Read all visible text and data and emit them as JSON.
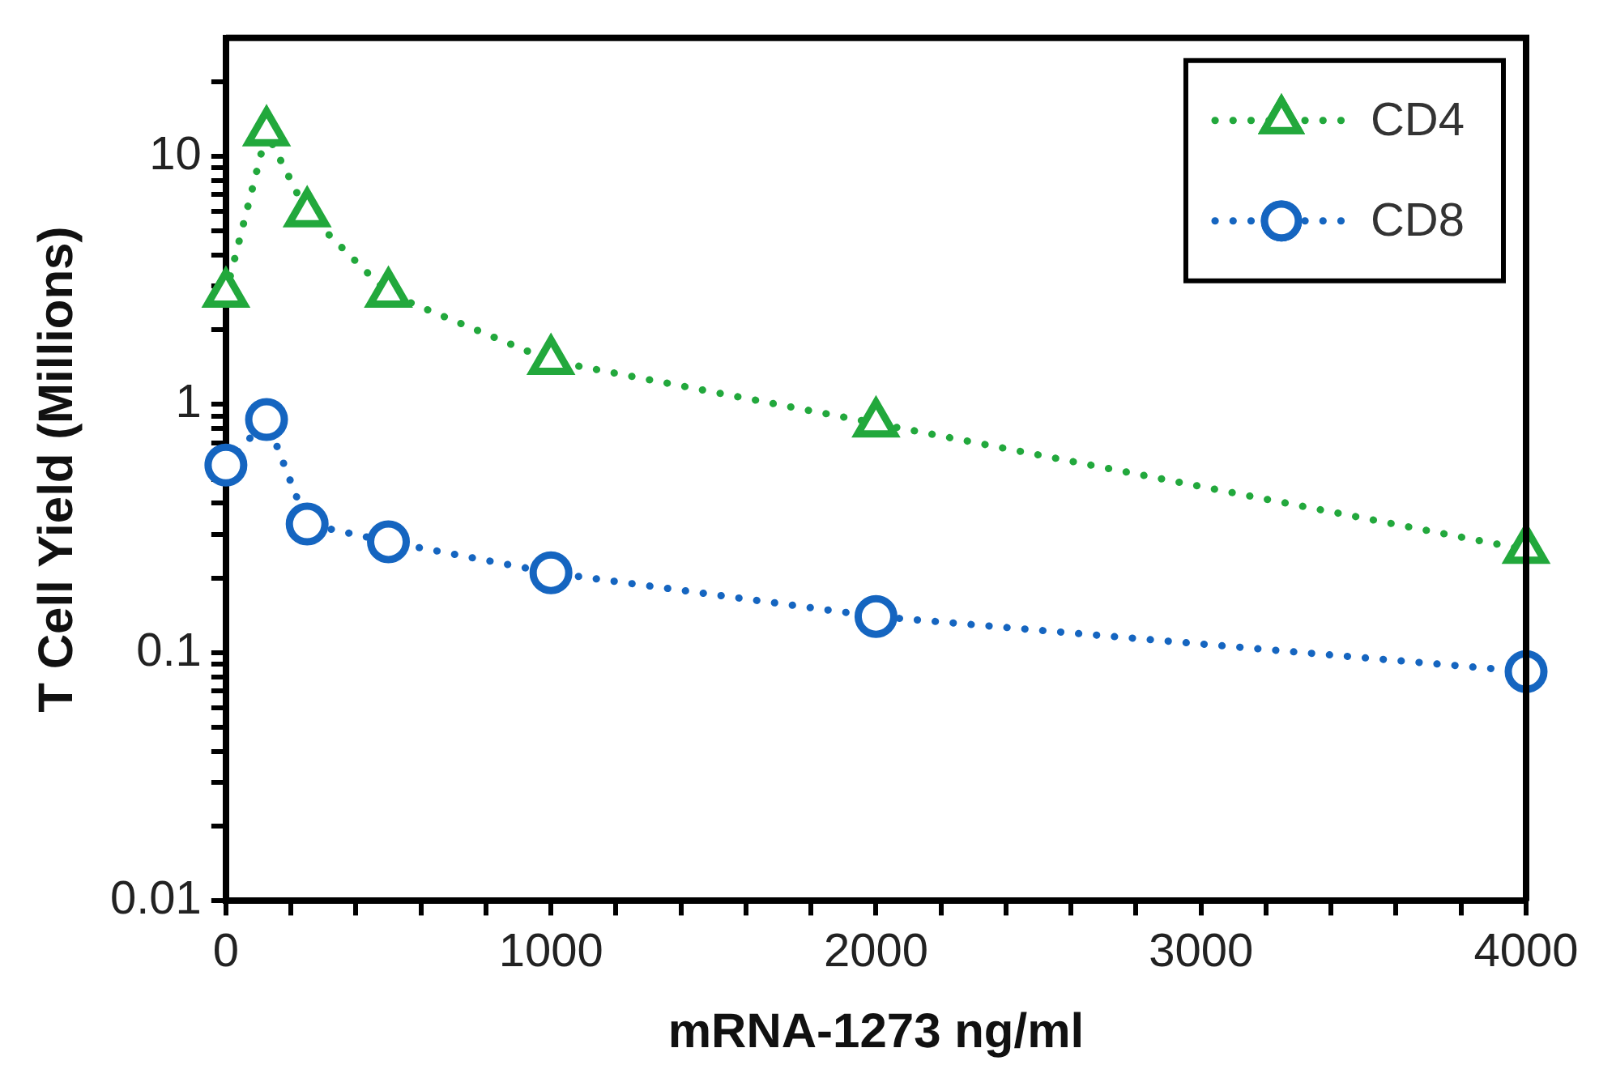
{
  "chart_data": {
    "type": "line",
    "xlabel": "mRNA-1273 ng/ml",
    "ylabel": "T Cell Yield (Millions)",
    "x": [
      0,
      125,
      250,
      500,
      1000,
      2000,
      4000
    ],
    "series": [
      {
        "name": "CD4",
        "color": "#22a83c",
        "marker": "triangle",
        "values": [
          2.8,
          12.5,
          5.9,
          2.8,
          1.5,
          0.84,
          0.26
        ]
      },
      {
        "name": "CD8",
        "color": "#1565c0",
        "marker": "circle",
        "values": [
          0.57,
          0.87,
          0.33,
          0.28,
          0.21,
          0.14,
          0.084
        ]
      }
    ],
    "line_style": "dotted",
    "log": "y",
    "grid": false,
    "legend": "top right",
    "xlim": [
      0,
      4000
    ],
    "xticks": [
      0,
      {
        "value": 200,
        "label": null
      },
      {
        "value": 400,
        "label": null
      },
      {
        "value": 600,
        "label": null
      },
      {
        "value": 800,
        "label": null
      },
      1000,
      {
        "value": 1200,
        "label": null
      },
      {
        "value": 1400,
        "label": null
      },
      {
        "value": 1600,
        "label": null
      },
      {
        "value": 1800,
        "label": null
      },
      2000,
      {
        "value": 2200,
        "label": null
      },
      {
        "value": 2400,
        "label": null
      },
      {
        "value": 2600,
        "label": null
      },
      {
        "value": 2800,
        "label": null
      },
      3000,
      {
        "value": 3200,
        "label": null
      },
      {
        "value": 3400,
        "label": null
      },
      {
        "value": 3600,
        "label": null
      },
      {
        "value": 3800,
        "label": null
      },
      4000
    ],
    "ylim": [
      0.01,
      30
    ],
    "yticks": [
      0.01,
      {
        "value": 0.02,
        "label": null
      },
      {
        "value": 0.03,
        "label": null
      },
      {
        "value": 0.04,
        "label": null
      },
      {
        "value": 0.05,
        "label": null
      },
      {
        "value": 0.06,
        "label": null
      },
      {
        "value": 0.07,
        "label": null
      },
      {
        "value": 0.08,
        "label": null
      },
      {
        "value": 0.09,
        "label": null
      },
      0.1,
      {
        "value": 0.2,
        "label": null
      },
      {
        "value": 0.3,
        "label": null
      },
      {
        "value": 0.4,
        "label": null
      },
      {
        "value": 0.5,
        "label": null
      },
      {
        "value": 0.6,
        "label": null
      },
      {
        "value": 0.7,
        "label": null
      },
      {
        "value": 0.8,
        "label": null
      },
      {
        "value": 0.9,
        "label": null
      },
      1,
      {
        "value": 2,
        "label": null
      },
      {
        "value": 3,
        "label": null
      },
      {
        "value": 4,
        "label": null
      },
      {
        "value": 5,
        "label": null
      },
      {
        "value": 6,
        "label": null
      },
      {
        "value": 7,
        "label": null
      },
      {
        "value": 8,
        "label": null
      },
      {
        "value": 9,
        "label": null
      },
      10,
      {
        "value": 20,
        "label": null
      }
    ]
  }
}
